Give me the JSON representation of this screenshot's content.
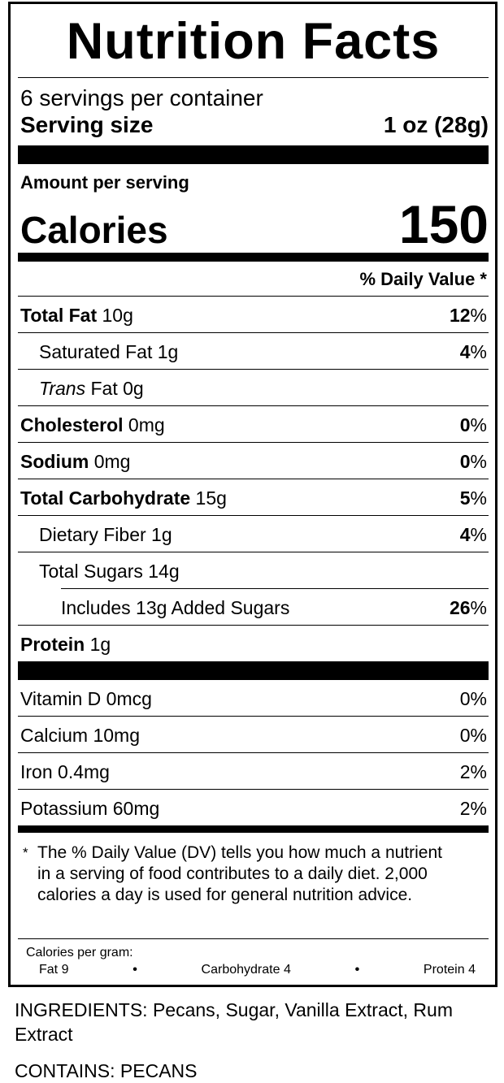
{
  "title": "Nutrition Facts",
  "servings": "6 servings per container",
  "serving_size": {
    "label": "Serving size",
    "value": "1 oz (28g)"
  },
  "amount_per_serving": "Amount per serving",
  "calories": {
    "label": "Calories",
    "value": "150"
  },
  "dv_header": "% Daily Value *",
  "nutrients": [
    {
      "name": "Total Fat",
      "amount": "10g",
      "dv": "12",
      "dv_unit": "%",
      "level": 0,
      "bold": true
    },
    {
      "name": "Saturated Fat",
      "amount": "1g",
      "dv": "4",
      "dv_unit": "%",
      "level": 1,
      "bold": false
    },
    {
      "name": "Trans",
      "amount": "Fat 0g",
      "level": 1,
      "bold": false,
      "italic": true
    },
    {
      "name": "Cholesterol",
      "amount": "0mg",
      "dv": "0",
      "dv_unit": "%",
      "level": 0,
      "bold": true
    },
    {
      "name": "Sodium",
      "amount": "0mg",
      "dv": "0",
      "dv_unit": "%",
      "level": 0,
      "bold": true
    },
    {
      "name": "Total Carbohydrate",
      "amount": "15g",
      "dv": "5",
      "dv_unit": "%",
      "level": 0,
      "bold": true
    },
    {
      "name": "Dietary Fiber",
      "amount": "1g",
      "dv": "4",
      "dv_unit": "%",
      "level": 1,
      "bold": false
    },
    {
      "name": "Total Sugars",
      "amount": "14g",
      "level": 1,
      "bold": false
    },
    {
      "name": "Includes 13g Added Sugars",
      "dv": "26",
      "dv_unit": "%",
      "level": 2,
      "bold": false
    },
    {
      "name": "Protein",
      "amount": "1g",
      "level": 0,
      "bold": true
    }
  ],
  "vitamins": [
    {
      "name": "Vitamin D 0mcg",
      "dv": "0%"
    },
    {
      "name": "Calcium 10mg",
      "dv": "0%"
    },
    {
      "name": "Iron 0.4mg",
      "dv": "2%"
    },
    {
      "name": "Potassium 60mg",
      "dv": "2%"
    }
  ],
  "footnote": {
    "mark": "*",
    "text": "The % Daily Value (DV) tells you how much a nutrient in a serving of food contributes to a daily diet. 2,000 calories a day is used for general nutrition advice."
  },
  "calories_per_gram": {
    "label": "Calories per gram:",
    "items": [
      "Fat 9",
      "Carbohydrate 4",
      "Protein 4"
    ]
  },
  "ingredients": "INGREDIENTS: Pecans, Sugar, Vanilla Extract, Rum Extract",
  "contains": "CONTAINS: PECANS"
}
